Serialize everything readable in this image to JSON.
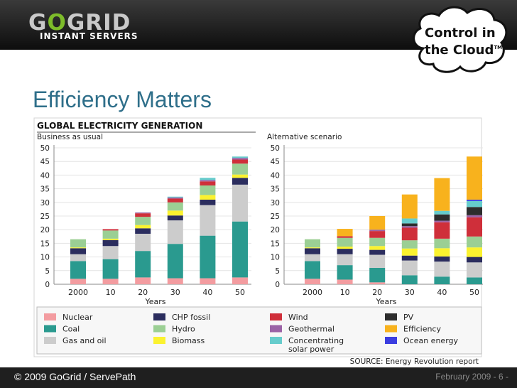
{
  "header": {
    "logo_text_1": "G",
    "logo_text_2": "O",
    "logo_text_3": "GRID",
    "tagline": "INSTANT SERVERS",
    "badge_line1": "Control in",
    "badge_line2": "the Cloud",
    "badge_tm": "TM"
  },
  "slide": {
    "title": "Efficiency Matters"
  },
  "figure": {
    "title": "GLOBAL ELECTRICITY GENERATION",
    "source": "SOURCE: Energy Revolution report"
  },
  "colors": {
    "Nuclear": "#f39ca0",
    "Coal": "#2a9a8f",
    "Gas and oil": "#cccccc",
    "CHP fossil": "#2b2d5e",
    "Hydro": "#9bcf94",
    "Biomass": "#fbf22f",
    "Wind": "#cf2f3a",
    "Geothermal": "#9b63a6",
    "Concentrating solar power": "#66cccc",
    "PV": "#2d2d2d",
    "Efficiency": "#f8b21d",
    "Ocean energy": "#3b3de0"
  },
  "chart_data": [
    {
      "type": "bar",
      "stacked": true,
      "title": "Business as usual",
      "categories": [
        "2000",
        "10",
        "20",
        "30",
        "40",
        "50"
      ],
      "xlabel": "Years",
      "ylabel": "",
      "ylim": [
        0,
        50
      ],
      "yticks": [
        "0",
        "5",
        "10",
        "15",
        "20",
        "25",
        "30",
        "35",
        "40",
        "45",
        "50"
      ],
      "series": [
        {
          "name": "Nuclear",
          "values": [
            2,
            2,
            2.5,
            2.2,
            2.2,
            2.5
          ]
        },
        {
          "name": "Coal",
          "values": [
            6.5,
            7.2,
            9.7,
            12.6,
            15.6,
            20.5
          ]
        },
        {
          "name": "Gas and oil",
          "values": [
            2.5,
            4.8,
            6.3,
            8.6,
            11.2,
            13.5
          ]
        },
        {
          "name": "CHP fossil",
          "values": [
            2.2,
            2.2,
            2.0,
            1.8,
            2.0,
            2.5
          ]
        },
        {
          "name": "Biomass",
          "values": [
            0.3,
            0.5,
            1.2,
            1.8,
            1.7,
            1.2
          ]
        },
        {
          "name": "Hydro",
          "values": [
            3.0,
            3.0,
            3.0,
            3.0,
            3.5,
            4.0
          ]
        },
        {
          "name": "Wind",
          "values": [
            0,
            0.5,
            1.3,
            1.4,
            1.5,
            1.5
          ]
        },
        {
          "name": "Geothermal",
          "values": [
            0,
            0,
            0.3,
            0.4,
            0.5,
            0.6
          ]
        },
        {
          "name": "Concentrating solar power",
          "values": [
            0,
            0,
            0,
            0.3,
            0.8,
            0.5
          ]
        }
      ]
    },
    {
      "type": "bar",
      "stacked": true,
      "title": "Alternative scenario",
      "categories": [
        "2000",
        "10",
        "20",
        "30",
        "40",
        "50"
      ],
      "xlabel": "Years",
      "ylabel": "",
      "ylim": [
        0,
        50
      ],
      "yticks": [
        "0",
        "5",
        "10",
        "15",
        "20",
        "25",
        "30",
        "35",
        "40",
        "45",
        "50"
      ],
      "series": [
        {
          "name": "Nuclear",
          "values": [
            2,
            1.7,
            0.7,
            0,
            0,
            0
          ]
        },
        {
          "name": "Coal",
          "values": [
            6.5,
            5.3,
            5.3,
            3.3,
            2.8,
            2.5
          ]
        },
        {
          "name": "Gas and oil",
          "values": [
            2.5,
            4.0,
            4.8,
            5.4,
            5.5,
            5.5
          ]
        },
        {
          "name": "CHP fossil",
          "values": [
            2.2,
            2.0,
            1.8,
            1.8,
            1.9,
            2.0
          ]
        },
        {
          "name": "Biomass",
          "values": [
            0.3,
            0.8,
            1.4,
            2.6,
            3.0,
            3.5
          ]
        },
        {
          "name": "Hydro",
          "values": [
            3.0,
            3.2,
            3.0,
            3.0,
            3.5,
            4.0
          ]
        },
        {
          "name": "Wind",
          "values": [
            0,
            0.6,
            2.5,
            4.6,
            6.0,
            7.0
          ]
        },
        {
          "name": "Geothermal",
          "values": [
            0,
            0,
            0.5,
            0.6,
            0.6,
            0.8
          ]
        },
        {
          "name": "PV",
          "values": [
            0,
            0,
            0,
            1.0,
            2.3,
            3.0
          ]
        },
        {
          "name": "Concentrating solar power",
          "values": [
            0,
            0,
            0,
            1.8,
            1.3,
            2.2
          ]
        },
        {
          "name": "Ocean energy",
          "values": [
            0,
            0,
            0,
            0,
            0,
            0.5
          ]
        },
        {
          "name": "Efficiency",
          "values": [
            0,
            2.7,
            5.0,
            8.8,
            12.0,
            15.8
          ]
        }
      ]
    }
  ],
  "legend": [
    {
      "label": "Nuclear",
      "color": "#f39ca0"
    },
    {
      "label": "CHP fossil",
      "color": "#2b2d5e"
    },
    {
      "label": "Wind",
      "color": "#cf2f3a"
    },
    {
      "label": "PV",
      "color": "#2d2d2d"
    },
    {
      "label": "Coal",
      "color": "#2a9a8f"
    },
    {
      "label": "Hydro",
      "color": "#9bcf94"
    },
    {
      "label": "Geothermal",
      "color": "#9b63a6"
    },
    {
      "label": "Efficiency",
      "color": "#f8b21d"
    },
    {
      "label": "Gas and oil",
      "color": "#cccccc"
    },
    {
      "label": "Biomass",
      "color": "#fbf22f"
    },
    {
      "label": "Concentrating solar power",
      "color": "#66cccc"
    },
    {
      "label": "Ocean energy",
      "color": "#3b3de0"
    }
  ],
  "footer": {
    "copyright": "© 2009 GoGrid / ServePath",
    "page_info": "February 2009 - 6 -"
  }
}
